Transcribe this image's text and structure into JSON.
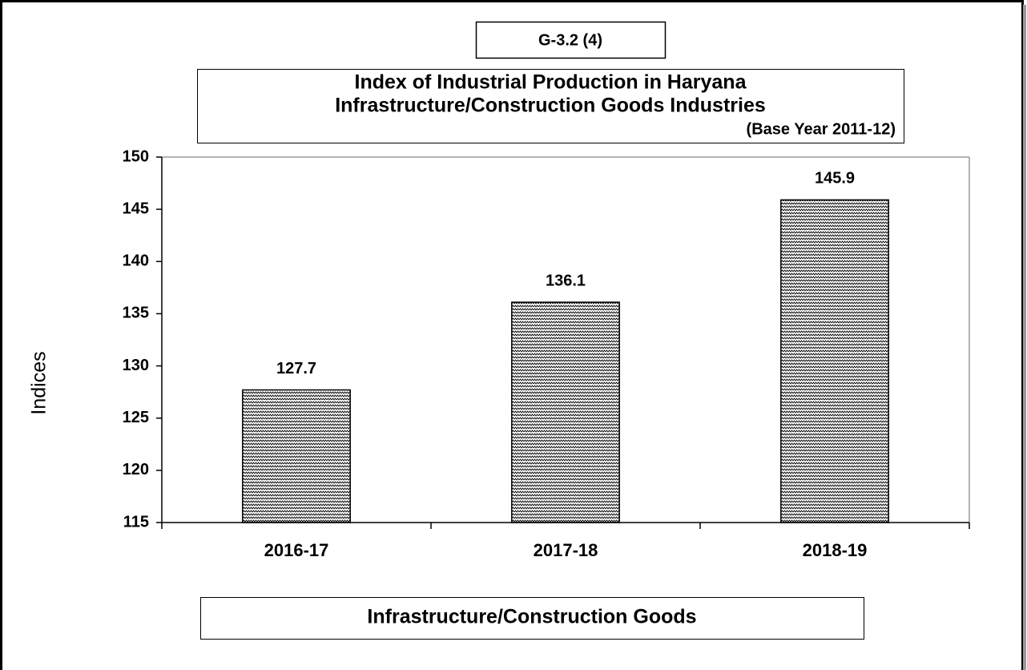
{
  "chart_data": {
    "type": "bar",
    "chart_id": "G-3.2 (4)",
    "title": [
      "Index of Industrial Production in Haryana",
      "Infrastructure/Construction Goods Industries"
    ],
    "subtitle": "(Base Year 2011-12)",
    "categories": [
      "2016-17",
      "2017-18",
      "2018-19"
    ],
    "values": [
      127.7,
      136.1,
      145.9
    ],
    "color": "#000000",
    "ylabel": "Indices",
    "xlabel": "Infrastructure/Construction Goods",
    "ylim": [
      115,
      150
    ],
    "yticks": [
      115,
      120,
      125,
      130,
      135,
      140,
      145,
      150
    ]
  }
}
